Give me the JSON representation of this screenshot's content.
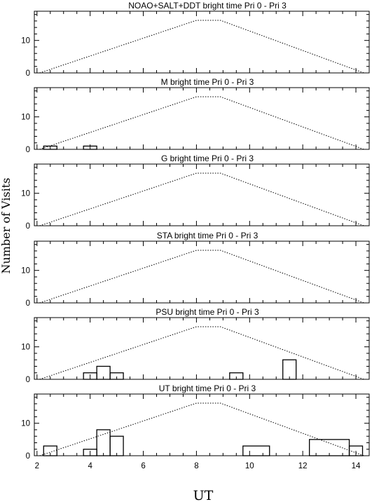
{
  "figure": {
    "ylabel": "Number of Visits",
    "xlabel": "UT"
  },
  "chart_data": {
    "type": "multi-panel line + histogram",
    "xlim": [
      1.9,
      14.5
    ],
    "ylim": [
      0,
      19
    ],
    "xticks": [
      2,
      4,
      6,
      8,
      10,
      12,
      14
    ],
    "yticks": [
      0,
      10
    ],
    "envelope": {
      "style": "dotted",
      "points": [
        [
          2.1,
          0
        ],
        [
          8.0,
          16.2
        ],
        [
          8.9,
          16.2
        ],
        [
          14.3,
          0
        ]
      ]
    },
    "panels": [
      {
        "name": "NOAO+SALT+DDT",
        "label": "bright time Pri 0 - Pri 3",
        "bins": []
      },
      {
        "name": "M",
        "label": "bright time Pri 0 - Pri 3",
        "bins": [
          [
            2.25,
            2.75,
            1
          ],
          [
            3.75,
            4.25,
            1
          ]
        ]
      },
      {
        "name": "G",
        "label": "bright time Pri 0 - Pri 3",
        "bins": []
      },
      {
        "name": "STA",
        "label": "bright time Pri 0 - Pri 3",
        "bins": []
      },
      {
        "name": "PSU",
        "label": "bright time Pri 0 - Pri 3",
        "bins": [
          [
            3.75,
            4.25,
            2
          ],
          [
            4.25,
            4.75,
            4
          ],
          [
            4.75,
            5.25,
            2
          ],
          [
            9.25,
            9.75,
            2
          ],
          [
            11.25,
            11.75,
            6
          ]
        ]
      },
      {
        "name": "UT",
        "label": "bright time Pri 0 - Pri 3",
        "bins": [
          [
            2.25,
            2.75,
            3
          ],
          [
            3.75,
            4.25,
            2
          ],
          [
            4.25,
            4.75,
            8
          ],
          [
            4.75,
            5.25,
            6
          ],
          [
            9.75,
            10.75,
            3
          ],
          [
            12.25,
            13.75,
            5
          ],
          [
            13.75,
            14.25,
            3
          ]
        ]
      }
    ]
  },
  "colors": {
    "ink": "#000000",
    "background": "#ffffff"
  }
}
